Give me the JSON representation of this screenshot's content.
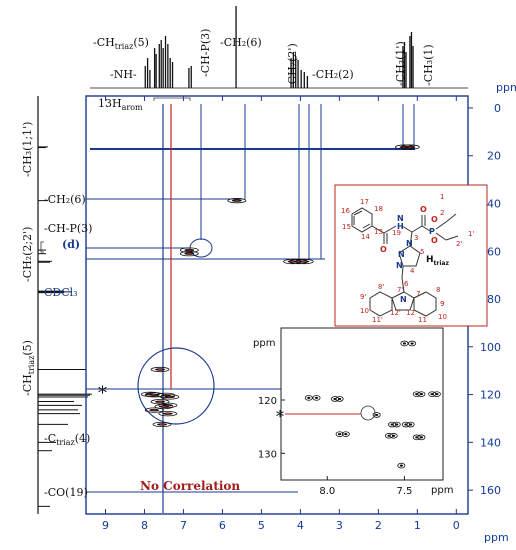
{
  "chart_data": {
    "type": "heatmap",
    "title": "",
    "f2_axis": {
      "label": "ppm",
      "lim": [
        9.5,
        -0.3
      ],
      "ticks": [
        9,
        8,
        7,
        6,
        5,
        4,
        3,
        2,
        1,
        0
      ]
    },
    "f1_axis": {
      "label": "ppm",
      "lim": [
        -5,
        170
      ],
      "ticks": [
        0,
        20,
        40,
        60,
        80,
        100,
        120,
        140,
        160
      ]
    },
    "proton_labels": [
      "-CH₂(6)",
      "-CH₃(1')",
      "-CH₃(1)",
      "-NH-",
      "-CH-P(3)",
      "-CH₂(2')",
      "-CH₂(2)"
    ],
    "proton_label_triaz": {
      "main": "-CH",
      "sub": "triaz",
      "suffix": "(5)"
    },
    "carbon_labels": [
      "-CH₃(1;1')",
      "-CH₂(6)",
      "-CH-P(3)",
      "(d)",
      "-CH₂(2;2')",
      "CDCl₃",
      "-CO(19)"
    ],
    "carbon_label_triaz5": {
      "main": "-CH",
      "sub": "triaz",
      "suffix": "(5)"
    },
    "carbon_label_triaz4": {
      "main": "-C",
      "sub": "triaz",
      "suffix": "(4)"
    },
    "arom_label": {
      "main": "13H",
      "sub": "arom"
    },
    "structure_label": {
      "main": "H",
      "sub": "triaz"
    },
    "annotations": [
      "No Correlation",
      "*"
    ],
    "correlations": [
      {
        "assign": "CH3(1;1')",
        "h": 1.33,
        "c": 16.4
      },
      {
        "assign": "CH3(1;1')",
        "h": 1.18,
        "c": 16.4
      },
      {
        "assign": "CH2(6)",
        "h": 5.63,
        "c": 38.8
      },
      {
        "assign": "CH-P(3)",
        "h": 6.85,
        "c": 59.5
      },
      {
        "assign": "CH-P(3)",
        "h": 6.85,
        "c": 61.0
      },
      {
        "assign": "CH2(2;2')",
        "h": 4.2,
        "c": 64.3
      },
      {
        "assign": "CH2(2;2')",
        "h": 4.05,
        "c": 64.3
      },
      {
        "assign": "CH2(2;2')",
        "h": 3.9,
        "c": 64.3
      },
      {
        "assign": "arom",
        "h": 7.6,
        "c": 109.5
      },
      {
        "assign": "arom",
        "h": 7.85,
        "c": 119.9
      },
      {
        "assign": "arom",
        "h": 7.75,
        "c": 120.1
      },
      {
        "assign": "arom",
        "h": 7.45,
        "c": 120.3
      },
      {
        "assign": "arom",
        "h": 7.35,
        "c": 121.0
      },
      {
        "assign": "CHtriaz(5)",
        "h": 7.6,
        "c": 123.0
      },
      {
        "assign": "arom",
        "h": 7.4,
        "c": 124.5
      },
      {
        "assign": "arom",
        "h": 7.5,
        "c": 125.0
      },
      {
        "assign": "arom",
        "h": 7.75,
        "c": 126.5
      },
      {
        "assign": "arom",
        "h": 7.4,
        "c": 128.0
      },
      {
        "assign": "arom",
        "h": 7.55,
        "c": 132.5
      }
    ],
    "inset": {
      "x_label": "ppm",
      "x_lim": [
        8.3,
        7.25
      ],
      "x_ticks": [
        "8.0",
        "7.5"
      ],
      "y_label": "ppm",
      "y_lim": [
        106.5,
        135
      ],
      "y_ticks": [
        "120",
        "130"
      ],
      "peaks": [
        {
          "h": 7.5,
          "c": 109.4
        },
        {
          "h": 7.45,
          "c": 109.4
        },
        {
          "h": 8.12,
          "c": 119.6
        },
        {
          "h": 8.07,
          "c": 119.6
        },
        {
          "h": 7.95,
          "c": 119.8
        },
        {
          "h": 7.92,
          "c": 119.8
        },
        {
          "h": 7.42,
          "c": 118.9
        },
        {
          "h": 7.39,
          "c": 118.9
        },
        {
          "h": 7.32,
          "c": 118.9
        },
        {
          "h": 7.29,
          "c": 118.9
        },
        {
          "h": 7.68,
          "c": 122.8
        },
        {
          "h": 7.58,
          "c": 124.6
        },
        {
          "h": 7.55,
          "c": 124.6
        },
        {
          "h": 7.49,
          "c": 124.6
        },
        {
          "h": 7.46,
          "c": 124.6
        },
        {
          "h": 7.92,
          "c": 126.4
        },
        {
          "h": 7.88,
          "c": 126.4
        },
        {
          "h": 7.6,
          "c": 126.7
        },
        {
          "h": 7.57,
          "c": 126.7
        },
        {
          "h": 7.42,
          "c": 127.0
        },
        {
          "h": 7.39,
          "c": 127.0
        },
        {
          "h": 7.52,
          "c": 132.3
        }
      ]
    }
  }
}
